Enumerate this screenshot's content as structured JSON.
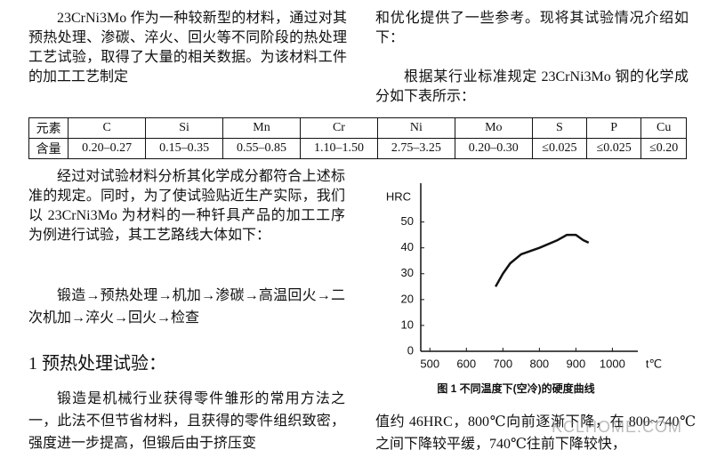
{
  "left_column": {
    "intro": "23CrNi3Mo 作为一种较新型的材料，通过对其预热处理、渗碳、淬火、回火等不同阶段的热处理工艺试验，取得了大量的相关数据。为该材料工件的加工工艺制定",
    "para2": "经过对试验材料分析其化学成分都符合上述标准的规定。同时，为了使试验贴近生产实际，我们以 23CrNi3Mo 为材料的一种钎具产品的加工工序为例进行试验，其工艺路线大体如下：",
    "route": "锻造→预热处理→机加→渗碳→高温回火→二次机加→淬火→回火→检查",
    "heading": "1  预热处理试验：",
    "para3": "锻造是机械行业获得零件雏形的常用方法之一，此法不但节省材料，且获得的零件组织致密，强度进一步提高，但锻后由于挤压变"
  },
  "right_column": {
    "intro_end": "和优化提供了一些参考。现将其试验情况介绍如下：",
    "table_lead": "根据某行业标准规定 23CrNi3Mo 钢的化学成分如下表所示：",
    "para_end": "值约 46HRC，800℃向前逐渐下降，在 800~740℃之间下降较平缓，740℃往前下降较快，"
  },
  "table": {
    "header": [
      "元素",
      "C",
      "Si",
      "Mn",
      "Cr",
      "Ni",
      "Mo",
      "S",
      "P",
      "Cu"
    ],
    "rows": [
      [
        "含量",
        "0.20–0.27",
        "0.15–0.35",
        "0.55–0.85",
        "1.10–1.50",
        "2.75–3.25",
        "0.20–0.30",
        "≤0.025",
        "≤0.025",
        "≤0.20"
      ]
    ]
  },
  "figure": {
    "type": "line",
    "caption": "图 1 不同温度下(空冷)的硬度曲线",
    "y_label": "HRC",
    "x_label": "t℃",
    "x": [
      680,
      700,
      720,
      750,
      800,
      850,
      875,
      900,
      920,
      935
    ],
    "values": [
      25,
      30,
      34,
      37.5,
      40,
      43,
      45,
      45,
      43,
      42
    ],
    "color": "#111111",
    "xlim": [
      475,
      1060
    ],
    "ylim": [
      0,
      65
    ],
    "xticks": [
      500,
      600,
      700,
      800,
      900,
      1000
    ],
    "yticks": [
      0,
      10,
      20,
      30,
      40,
      50
    ]
  },
  "watermark": "KCLHOME.COM"
}
